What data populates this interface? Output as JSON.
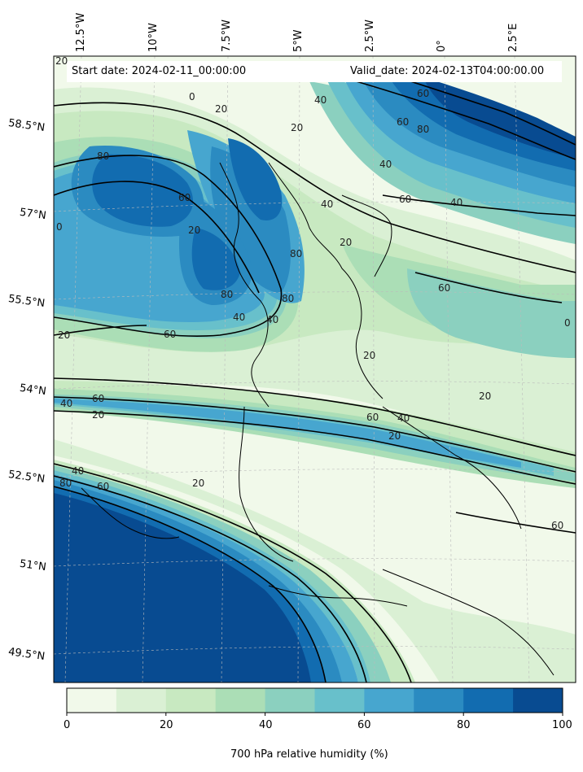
{
  "header": {
    "start_date": "Start date: 2024-02-11_00:00:00",
    "valid_date": "Valid_date: 2024-02-13T04:00:00.00"
  },
  "axes": {
    "lon_labels": [
      "12.5°W",
      "10°W",
      "7.5°W",
      "5°W",
      "2.5°W",
      "0°",
      "2.5°E"
    ],
    "lat_labels": [
      "58.5°N",
      "57°N",
      "55.5°N",
      "54°N",
      "52.5°N",
      "51°N",
      "49.5°N"
    ]
  },
  "colorbar": {
    "title": "700 hPa relative humidity (%)",
    "ticks": [
      "0",
      "20",
      "40",
      "60",
      "80",
      "100"
    ],
    "levels": [
      0,
      10,
      20,
      30,
      40,
      50,
      60,
      70,
      80,
      90,
      100
    ],
    "colors": [
      "#f1f9ea",
      "#daf0d4",
      "#c8e9c1",
      "#abdeb6",
      "#8bd0bf",
      "#68c0cb",
      "#47a6cf",
      "#2b8bc1",
      "#126cb0",
      "#084b91"
    ]
  },
  "contour_labels": {
    "values": [
      "20",
      "0",
      "20",
      "40",
      "60",
      "80",
      "80",
      "60",
      "40",
      "60",
      "80",
      "20",
      "60",
      "40",
      "80",
      "40",
      "60",
      "80",
      "60",
      "20",
      "40",
      "20",
      "60",
      "40",
      "20",
      "60",
      "40",
      "20",
      "20",
      "40",
      "80",
      "60",
      "20",
      "60",
      "20",
      "0",
      "20",
      "40",
      "0"
    ]
  },
  "land_mask_colors": {
    "coast": "#000000",
    "grid": "#bbbbbb"
  }
}
